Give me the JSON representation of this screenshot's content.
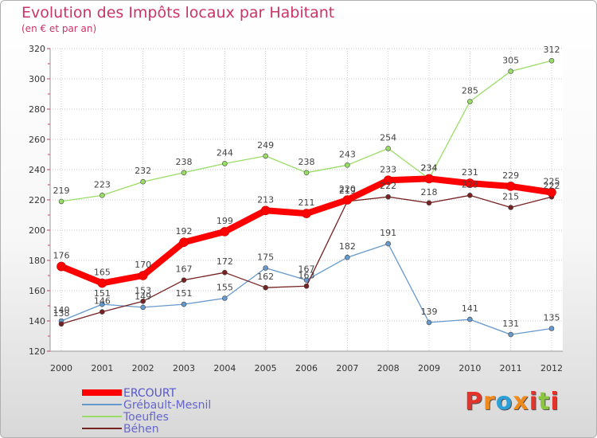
{
  "header": {
    "title": "Evolution des Impôts locaux par Habitant",
    "subtitle": "(en € et par an)"
  },
  "logo": {
    "text": "Proxiti",
    "colors": [
      "#e2342b",
      "#f08a1c",
      "#2a9fd8",
      "#f08a1c",
      "#e2342b",
      "#8cc63e",
      "#e2342b"
    ]
  },
  "colors": {
    "title": "#cc3366",
    "grid": "#c8c8c8",
    "axis_tick": "#cc3366"
  },
  "chart_data": {
    "type": "line",
    "title": "Evolution des Impôts locaux par Habitant",
    "subtitle": "(en € et par an)",
    "x": [
      "2000",
      "2001",
      "2002",
      "2003",
      "2004",
      "2005",
      "2006",
      "2007",
      "2008",
      "2009",
      "2010",
      "2011",
      "2012"
    ],
    "ylim": [
      120,
      320
    ],
    "yticks": [
      120,
      140,
      160,
      180,
      200,
      220,
      240,
      260,
      280,
      300,
      320
    ],
    "grid": true,
    "legend_position": "bottom-left",
    "series": [
      {
        "name": "ERCOURT",
        "color": "#ff0000",
        "values": [
          176,
          165,
          170,
          192,
          199,
          213,
          211,
          220,
          233,
          234,
          231,
          229,
          225
        ]
      },
      {
        "name": "Grébault-Mesnil",
        "color": "#6699cc",
        "values": [
          140,
          151,
          149,
          151,
          155,
          175,
          167,
          182,
          191,
          139,
          141,
          131,
          135
        ]
      },
      {
        "name": "Toeufles",
        "color": "#99dd66",
        "values": [
          219,
          223,
          232,
          238,
          244,
          249,
          238,
          243,
          254,
          234,
          285,
          305,
          312
        ]
      },
      {
        "name": "Béhen",
        "color": "#772222",
        "values": [
          138,
          146,
          153,
          167,
          172,
          162,
          163,
          219,
          222,
          218,
          223,
          215,
          222
        ]
      }
    ]
  }
}
